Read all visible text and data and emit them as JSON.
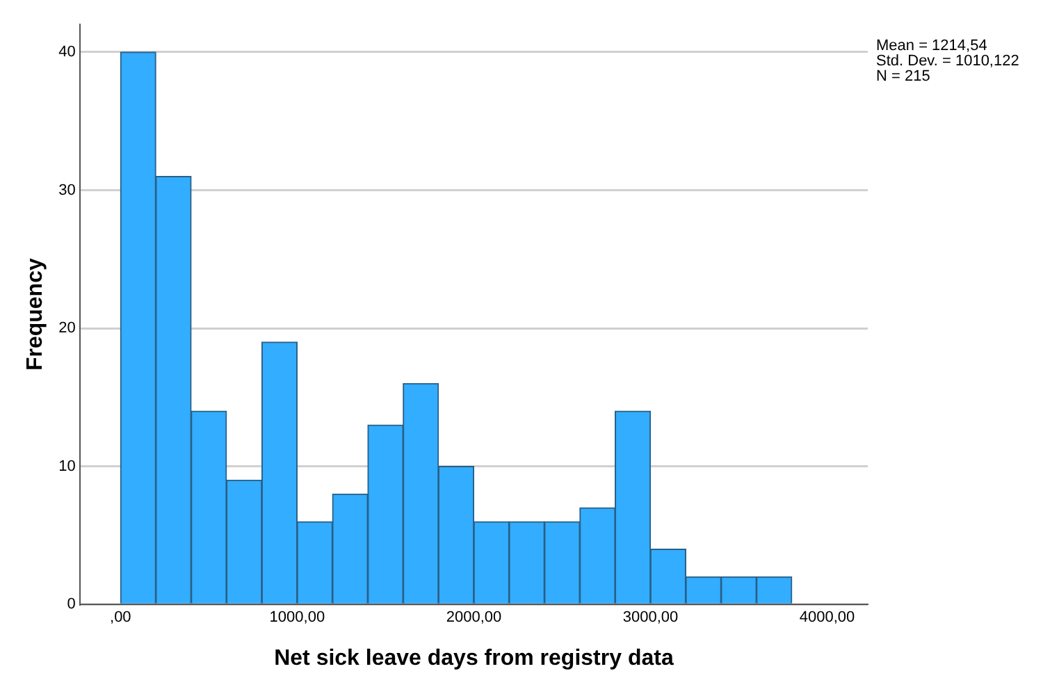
{
  "chart_data": {
    "type": "histogram",
    "xlabel": "Net sick leave days from registry data",
    "ylabel": "Frequency",
    "bins": [
      0,
      200,
      400,
      600,
      800,
      1000,
      1200,
      1400,
      1600,
      1800,
      2000,
      2200,
      2400,
      2600,
      2800,
      3000,
      3200,
      3400,
      3600,
      3800
    ],
    "values": [
      40,
      31,
      14,
      9,
      19,
      6,
      8,
      13,
      16,
      10,
      6,
      6,
      6,
      7,
      14,
      4,
      2,
      2,
      2
    ],
    "color": "#33adff",
    "xlim": [
      -230,
      4230
    ],
    "xticks": [
      {
        "value": 0,
        "label": ",00"
      },
      {
        "value": 1000,
        "label": "1000,00"
      },
      {
        "value": 2000,
        "label": "2000,00"
      },
      {
        "value": 3000,
        "label": "3000,00"
      },
      {
        "value": 4000,
        "label": "4000,00"
      }
    ],
    "ylim": [
      0,
      42
    ],
    "yticks": [
      0,
      10,
      20,
      30,
      40
    ],
    "grid": "y",
    "legend": false,
    "annotations": [
      "Mean = 1214,54",
      "Std. Dev. = 1010,122",
      "N = 215"
    ]
  }
}
